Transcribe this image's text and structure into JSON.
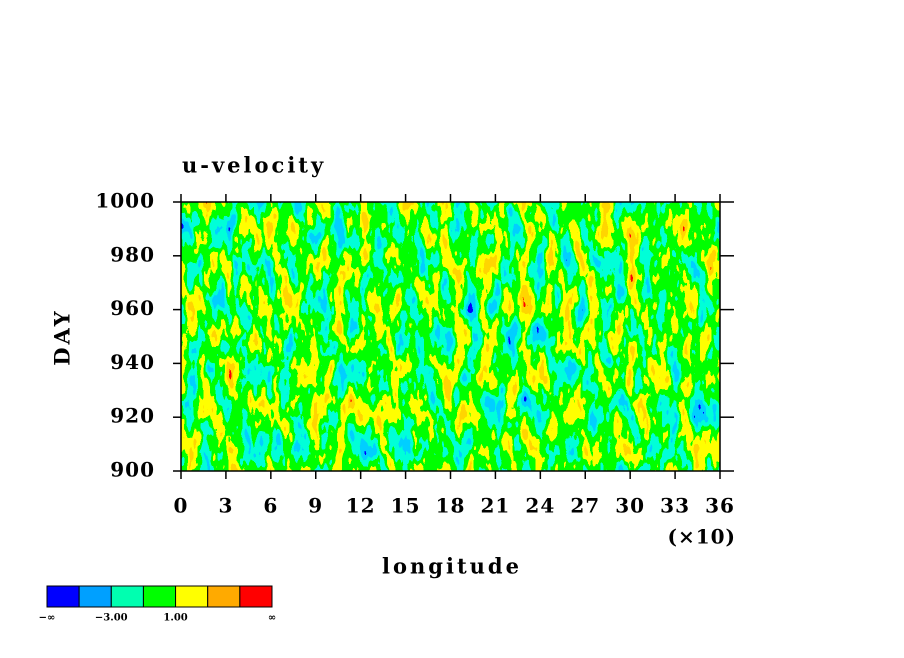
{
  "chart_data": {
    "type": "contour",
    "title": "u-velocity",
    "x_label": "longitude",
    "y_label": "DAY",
    "x_scale_label": "(×10)",
    "xlim": [
      0,
      36
    ],
    "xticks": [
      0,
      3,
      6,
      9,
      12,
      15,
      18,
      21,
      24,
      27,
      30,
      33,
      36
    ],
    "ylim": [
      900,
      1000
    ],
    "yticks": [
      900,
      920,
      940,
      960,
      980,
      1000
    ],
    "colorbar": {
      "colors": [
        "#0000ff",
        "#00a0ff",
        "#00ffb0",
        "#00ff00",
        "#ffff00",
        "#ffaa00",
        "#ff0000"
      ],
      "labels": [
        "−∞",
        null,
        "−3.00",
        null,
        "1.00",
        null,
        null,
        "∞"
      ]
    }
  }
}
